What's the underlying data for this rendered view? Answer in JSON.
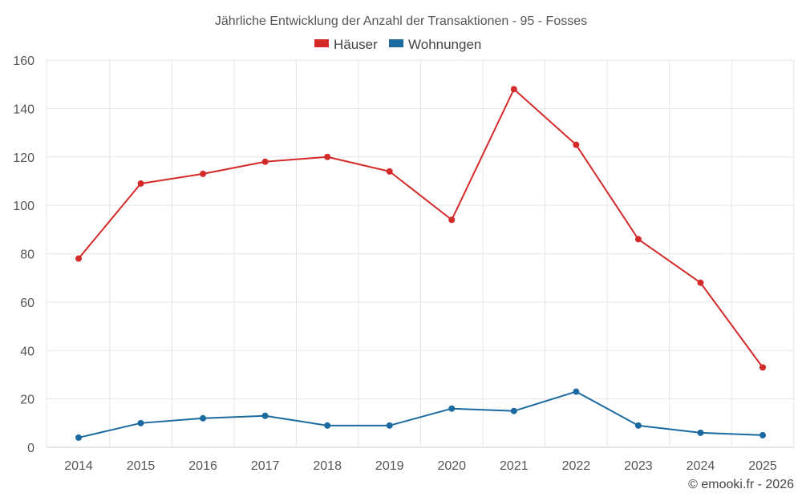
{
  "chart_data": {
    "type": "line",
    "title": "Jährliche Entwicklung der Anzahl der Transaktionen - 95 - Fosses",
    "xlabel": "",
    "ylabel": "",
    "categories": [
      "2014",
      "2015",
      "2016",
      "2017",
      "2018",
      "2019",
      "2020",
      "2021",
      "2022",
      "2023",
      "2024",
      "2025"
    ],
    "ylim": [
      0,
      160
    ],
    "yticks": [
      0,
      20,
      40,
      60,
      80,
      100,
      120,
      140,
      160
    ],
    "grid": true,
    "legend_position": "top-center",
    "series": [
      {
        "name": "Häuser",
        "color": "#d42a2a",
        "values": [
          78,
          109,
          113,
          118,
          120,
          114,
          94,
          148,
          125,
          86,
          68,
          33
        ]
      },
      {
        "name": "Wohnungen",
        "color": "#1a6aa0",
        "values": [
          4,
          10,
          12,
          13,
          9,
          9,
          16,
          15,
          23,
          9,
          6,
          5
        ]
      }
    ]
  },
  "footer": {
    "copyright": "© emooki.fr - 2026"
  }
}
